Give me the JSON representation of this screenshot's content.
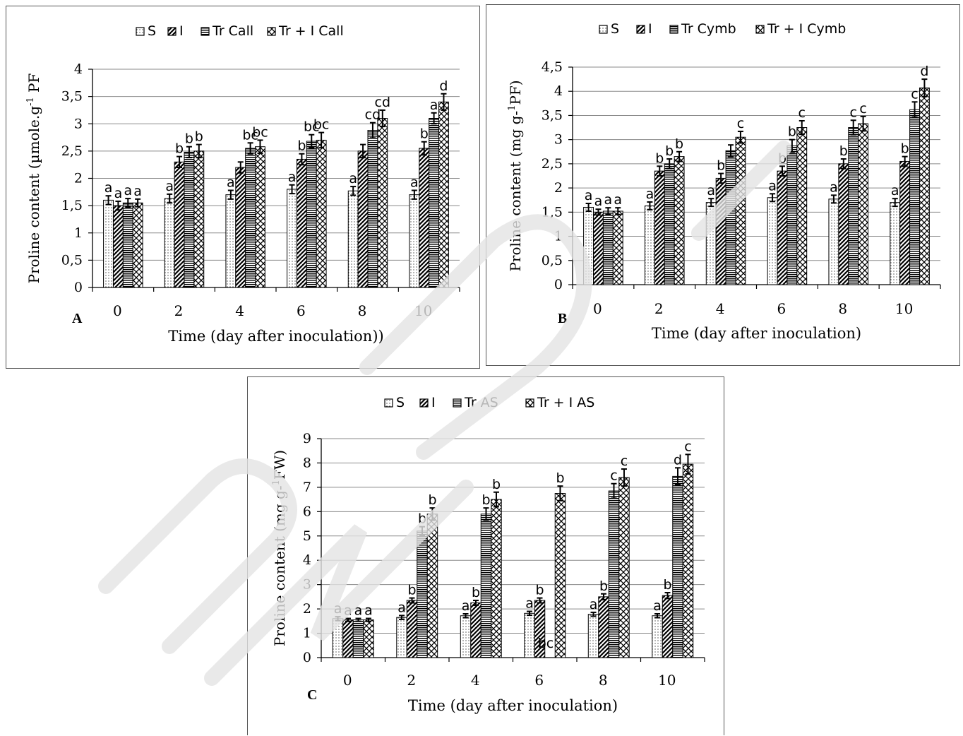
{
  "chart_data": [
    {
      "id": "A",
      "type": "bar",
      "panel_label": "A",
      "xlabel": "Time (day after inoculation))",
      "ylabel_main": "Proline content (µmole.g",
      "ylabel_sup": "-1",
      "ylabel_tail": " PF",
      "categories": [
        "0",
        "2",
        "4",
        "6",
        "8",
        "10"
      ],
      "ylim": [
        0,
        4
      ],
      "yticks": [
        "0",
        "0,5",
        "1",
        "1,5",
        "2",
        "2,5",
        "3",
        "3,5",
        "4"
      ],
      "grid": true,
      "legend_position": "top",
      "series": [
        {
          "name": "S",
          "pattern": "dots",
          "values": [
            1.6,
            1.63,
            1.7,
            1.8,
            1.77,
            1.7
          ],
          "errors": [
            0.08,
            0.08,
            0.08,
            0.08,
            0.08,
            0.08
          ],
          "labels": [
            "a",
            "a",
            "a",
            "a",
            "a",
            "a"
          ]
        },
        {
          "name": "I",
          "pattern": "diag",
          "values": [
            1.5,
            2.3,
            2.2,
            2.35,
            2.5,
            2.55
          ],
          "errors": [
            0.08,
            0.1,
            0.1,
            0.1,
            0.12,
            0.12
          ],
          "labels": [
            "a",
            "b",
            "",
            "b",
            "",
            "b"
          ]
        },
        {
          "name": "Tr Call",
          "pattern": "horiz",
          "values": [
            1.55,
            2.48,
            2.55,
            2.68,
            2.88,
            3.1
          ],
          "errors": [
            0.08,
            0.1,
            0.1,
            0.12,
            0.14,
            0.1
          ],
          "labels": [
            "a",
            "b",
            "bc",
            "bc",
            "cd",
            "a"
          ]
        },
        {
          "name": "Tr + I Call",
          "pattern": "check",
          "values": [
            1.55,
            2.5,
            2.58,
            2.7,
            3.1,
            3.4
          ],
          "errors": [
            0.07,
            0.12,
            0.12,
            0.14,
            0.15,
            0.15
          ],
          "labels": [
            "a",
            "b",
            "bc",
            "bc",
            "cd",
            "d"
          ]
        }
      ]
    },
    {
      "id": "B",
      "type": "bar",
      "panel_label": "B",
      "xlabel": "Time (day after inoculation)",
      "ylabel_main": "Proline content (mg g-",
      "ylabel_sup": "1",
      "ylabel_tail": "PF)",
      "categories": [
        "0",
        "2",
        "4",
        "6",
        "8",
        "10"
      ],
      "ylim": [
        0,
        4.5
      ],
      "yticks": [
        "0",
        "0,5",
        "1",
        "1,5",
        "2",
        "2,5",
        "3",
        "3,5",
        "4",
        "4,5"
      ],
      "grid": true,
      "legend_position": "top",
      "series": [
        {
          "name": "S",
          "pattern": "dots",
          "values": [
            1.6,
            1.63,
            1.7,
            1.8,
            1.77,
            1.7
          ],
          "errors": [
            0.08,
            0.08,
            0.08,
            0.08,
            0.08,
            0.08
          ],
          "labels": [
            "a",
            "a",
            "a",
            "a",
            "a",
            "a"
          ]
        },
        {
          "name": "I",
          "pattern": "diag",
          "values": [
            1.5,
            2.35,
            2.2,
            2.35,
            2.5,
            2.55
          ],
          "errors": [
            0.06,
            0.1,
            0.1,
            0.1,
            0.1,
            0.1
          ],
          "labels": [
            "a",
            "b",
            "b",
            "b",
            "b",
            "b"
          ]
        },
        {
          "name": "Tr Cymb",
          "pattern": "horiz",
          "values": [
            1.52,
            2.5,
            2.77,
            2.87,
            3.25,
            3.62
          ],
          "errors": [
            0.07,
            0.1,
            0.12,
            0.13,
            0.15,
            0.16
          ],
          "labels": [
            "a",
            "b",
            "",
            "b",
            "c",
            "c"
          ]
        },
        {
          "name": "Tr + I Cymb",
          "pattern": "check",
          "values": [
            1.52,
            2.65,
            3.05,
            3.25,
            3.33,
            4.07
          ],
          "errors": [
            0.07,
            0.1,
            0.12,
            0.14,
            0.15,
            0.18
          ],
          "labels": [
            "a",
            "b",
            "c",
            "c",
            "c",
            "d"
          ]
        }
      ]
    },
    {
      "id": "C",
      "type": "bar",
      "panel_label": "C",
      "xlabel": "Time (day after inoculation)",
      "ylabel_main": "Proline content (mg g-",
      "ylabel_sup": "1",
      "ylabel_tail": "FW)",
      "categories": [
        "0",
        "2",
        "4",
        "6",
        "8",
        "10"
      ],
      "ylim": [
        0,
        9
      ],
      "yticks": [
        "0",
        "1",
        "2",
        "3",
        "4",
        "5",
        "6",
        "7",
        "8",
        "9"
      ],
      "grid": true,
      "legend_position": "top",
      "extra_labels": [
        {
          "category": 3,
          "text": "bc",
          "y": 0.4
        }
      ],
      "series": [
        {
          "name": "S",
          "pattern": "dots",
          "values": [
            1.6,
            1.65,
            1.72,
            1.82,
            1.78,
            1.72
          ],
          "errors": [
            0.08,
            0.08,
            0.08,
            0.08,
            0.08,
            0.08
          ],
          "labels": [
            "a",
            "a",
            "a",
            "a",
            "a",
            "a"
          ]
        },
        {
          "name": "I",
          "pattern": "diag",
          "values": [
            1.55,
            2.35,
            2.25,
            2.35,
            2.5,
            2.55
          ],
          "errors": [
            0.06,
            0.1,
            0.1,
            0.1,
            0.12,
            0.12
          ],
          "labels": [
            "a",
            "b",
            "b",
            "b",
            "b",
            "b"
          ]
        },
        {
          "name": "Tr AS",
          "pattern": "horiz",
          "values": [
            1.55,
            5.2,
            5.9,
            null,
            6.85,
            7.45
          ],
          "errors": [
            0.06,
            0.18,
            0.25,
            null,
            0.3,
            0.35
          ],
          "labels": [
            "a",
            "b",
            "b",
            "",
            "c",
            "d"
          ]
        },
        {
          "name": "Tr + I AS",
          "pattern": "check",
          "values": [
            1.55,
            5.9,
            6.5,
            6.75,
            7.4,
            7.95
          ],
          "errors": [
            0.06,
            0.25,
            0.3,
            0.3,
            0.35,
            0.4
          ],
          "labels": [
            "a",
            "b",
            "b",
            "b",
            "c",
            "c"
          ]
        }
      ]
    }
  ]
}
